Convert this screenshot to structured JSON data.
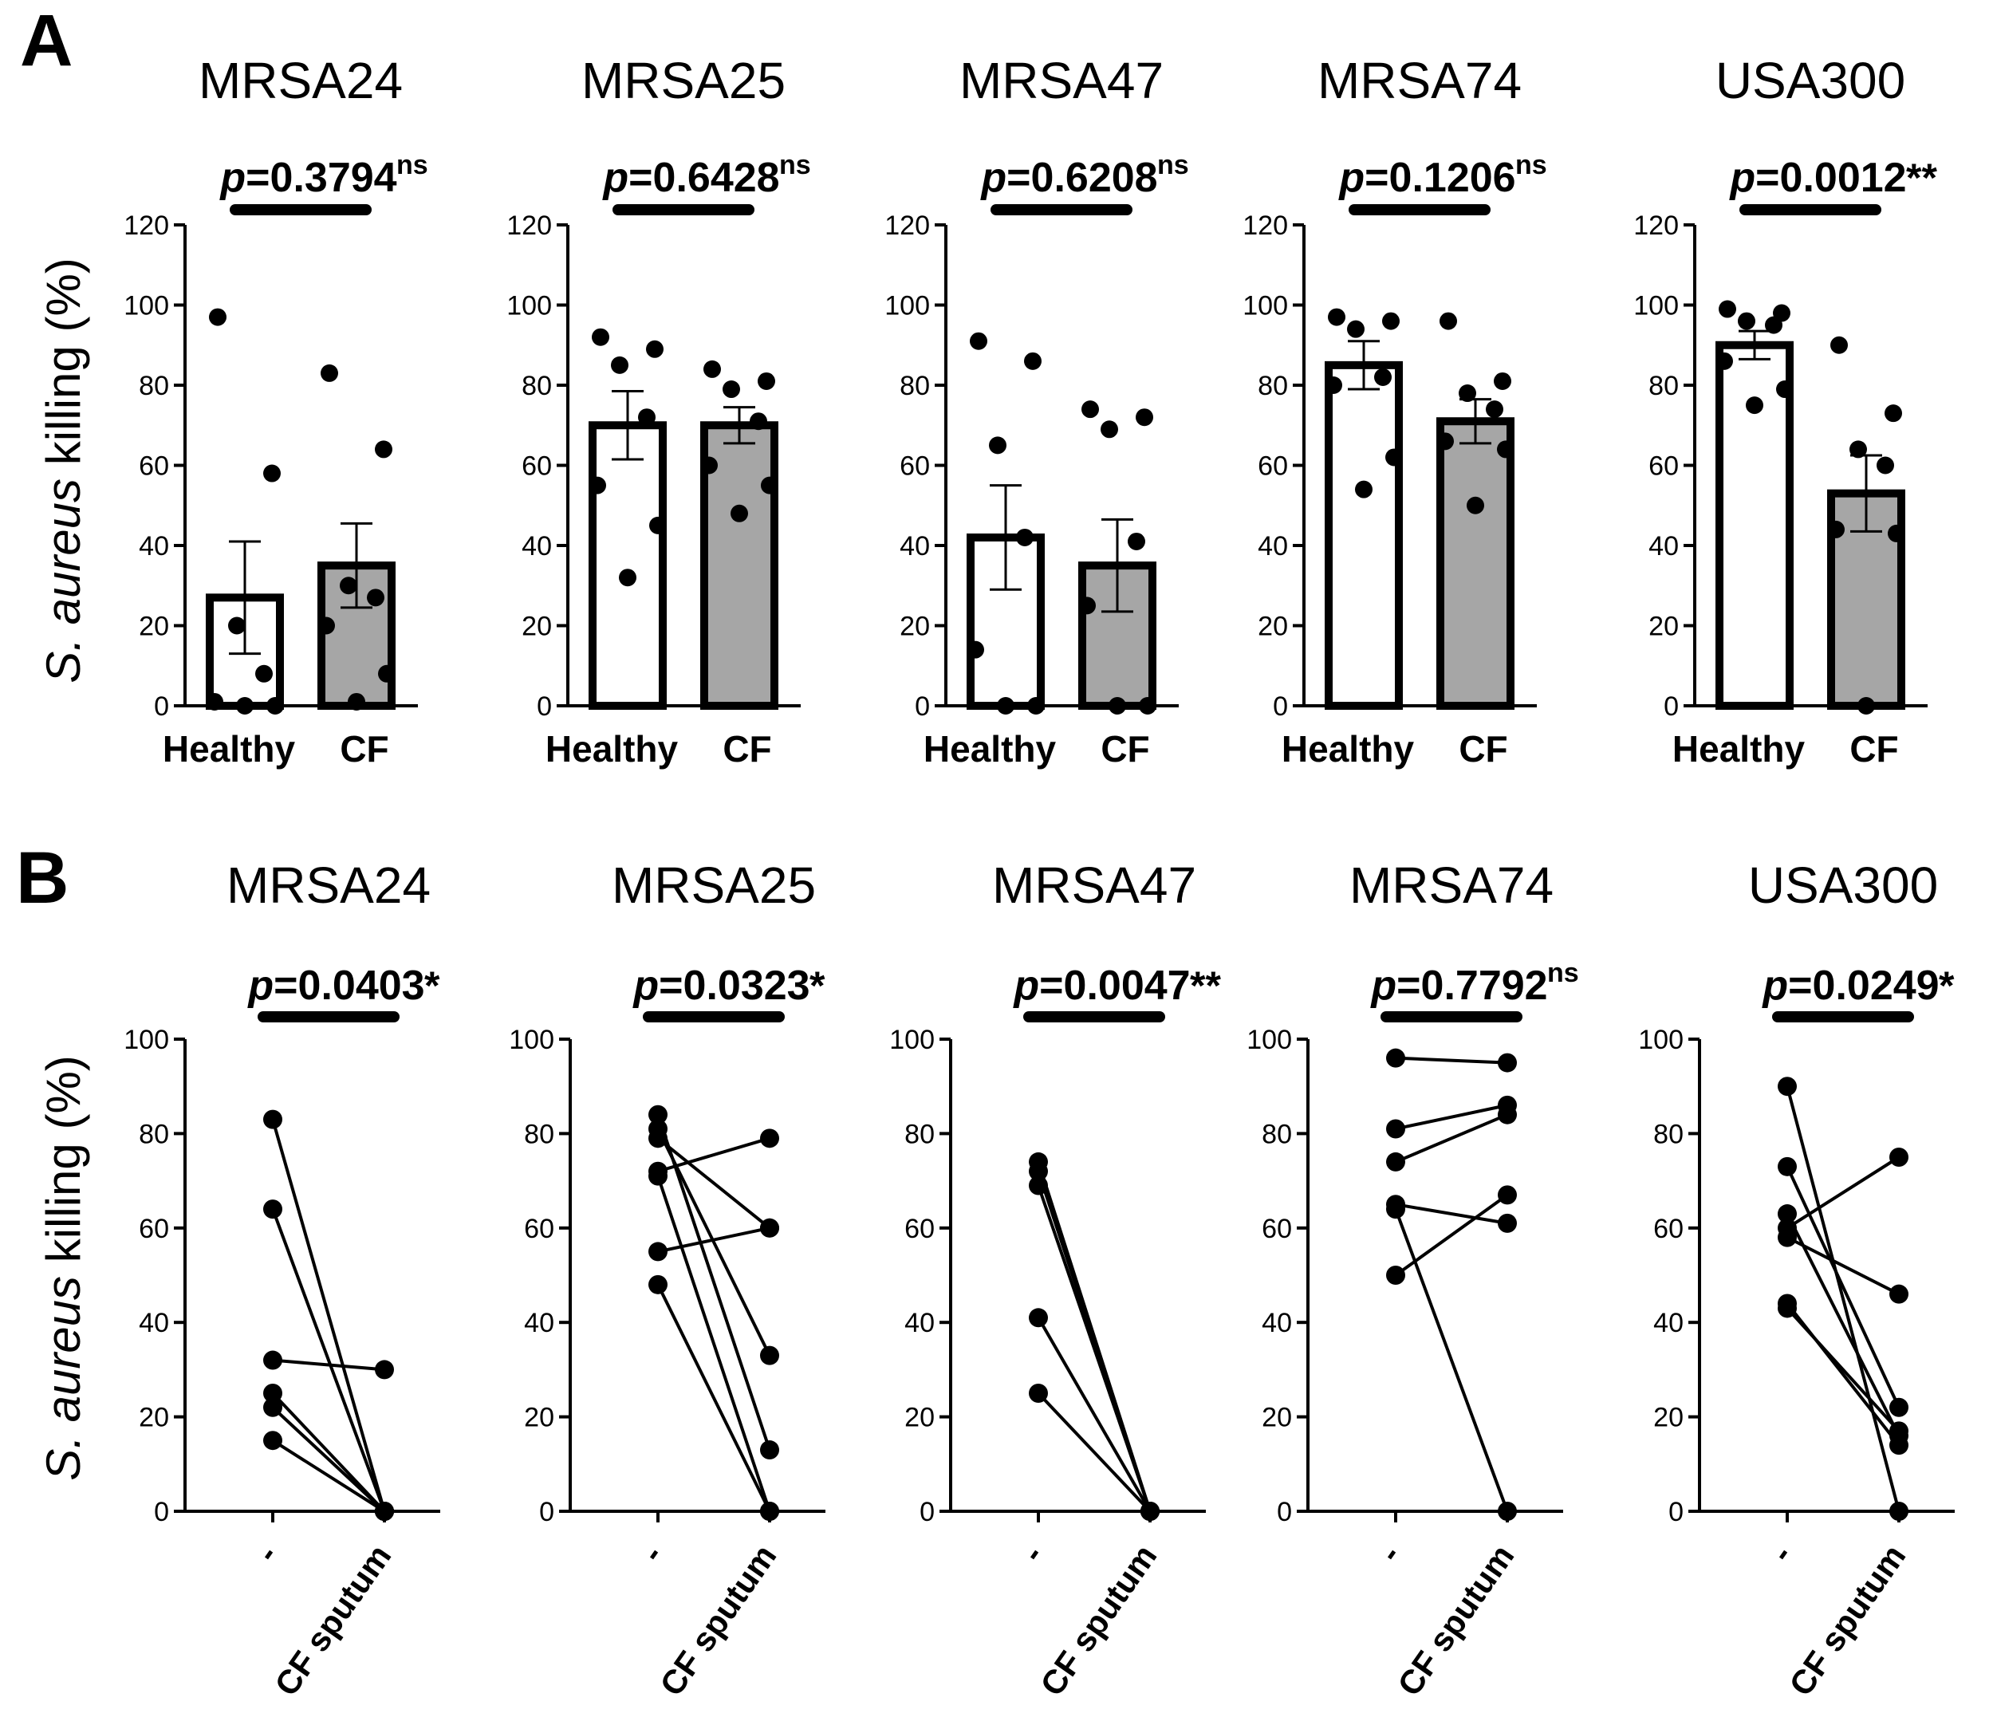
{
  "figure": {
    "panel_a_letter": "A",
    "panel_b_letter": "B",
    "panel_a_ylabel_italic": "S. aureus",
    "panel_a_ylabel_rest": " killing  (%)",
    "panel_b_ylabel_italic": "S. aureus",
    "panel_b_ylabel_rest": " killing (%)"
  },
  "chart_data": [
    {
      "type": "bar",
      "panel": "A",
      "title": "MRSA24",
      "categories": [
        "Healthy",
        "CF"
      ],
      "ylim": [
        0,
        120
      ],
      "yticks": [
        0,
        20,
        40,
        60,
        80,
        100,
        120
      ],
      "means": [
        27,
        35
      ],
      "sem": [
        14,
        10.5
      ],
      "points": [
        [
          97,
          58,
          20,
          8,
          1,
          0,
          0
        ],
        [
          83,
          64,
          30,
          27,
          20,
          8,
          1
        ]
      ],
      "fill": [
        "#ffffff",
        "#a6a6a6"
      ],
      "p_label": "p",
      "p_value": "=0.3794",
      "significance": "ns"
    },
    {
      "type": "bar",
      "panel": "A",
      "title": "MRSA25",
      "categories": [
        "Healthy",
        "CF"
      ],
      "ylim": [
        0,
        120
      ],
      "yticks": [
        0,
        20,
        40,
        60,
        80,
        100,
        120
      ],
      "means": [
        70,
        70
      ],
      "sem": [
        8.5,
        4.5
      ],
      "points": [
        [
          92,
          89,
          85,
          72,
          55,
          45,
          32
        ],
        [
          84,
          81,
          79,
          71,
          60,
          55,
          48
        ]
      ],
      "fill": [
        "#ffffff",
        "#a6a6a6"
      ],
      "p_label": "p",
      "p_value": "=0.6428",
      "significance": "ns"
    },
    {
      "type": "bar",
      "panel": "A",
      "title": "MRSA47",
      "categories": [
        "Healthy",
        "CF"
      ],
      "ylim": [
        0,
        120
      ],
      "yticks": [
        0,
        20,
        40,
        60,
        80,
        100,
        120
      ],
      "means": [
        42,
        35
      ],
      "sem": [
        13,
        11.5
      ],
      "points": [
        [
          91,
          86,
          65,
          42,
          14,
          0,
          0
        ],
        [
          74,
          72,
          69,
          41,
          25,
          0,
          0
        ]
      ],
      "fill": [
        "#ffffff",
        "#a6a6a6"
      ],
      "p_label": "p",
      "p_value": "=0.6208",
      "significance": "ns"
    },
    {
      "type": "bar",
      "panel": "A",
      "title": "MRSA74",
      "categories": [
        "Healthy",
        "CF"
      ],
      "ylim": [
        0,
        120
      ],
      "yticks": [
        0,
        20,
        40,
        60,
        80,
        100,
        120
      ],
      "means": [
        85,
        71
      ],
      "sem": [
        6,
        5.5
      ],
      "points": [
        [
          97,
          96,
          94,
          82,
          80,
          62,
          54
        ],
        [
          96,
          81,
          78,
          74,
          66,
          64,
          50
        ]
      ],
      "fill": [
        "#ffffff",
        "#a6a6a6"
      ],
      "p_label": "p",
      "p_value": "=0.1206",
      "significance": "ns"
    },
    {
      "type": "bar",
      "panel": "A",
      "title": "USA300",
      "categories": [
        "Healthy",
        "CF"
      ],
      "ylim": [
        0,
        120
      ],
      "yticks": [
        0,
        20,
        40,
        60,
        80,
        100,
        120
      ],
      "means": [
        90,
        53
      ],
      "sem": [
        3.5,
        9.5
      ],
      "points": [
        [
          99,
          98,
          96,
          95,
          86,
          79,
          75
        ],
        [
          90,
          73,
          64,
          60,
          44,
          43,
          0
        ]
      ],
      "fill": [
        "#ffffff",
        "#a6a6a6"
      ],
      "p_label": "p",
      "p_value": "=0.0012",
      "significance": "**"
    },
    {
      "type": "line",
      "panel": "B",
      "title": "MRSA24",
      "categories": [
        "-",
        "CF sputum"
      ],
      "ylim": [
        0,
        100
      ],
      "yticks": [
        0,
        20,
        40,
        60,
        80,
        100
      ],
      "pairs": [
        [
          83,
          0
        ],
        [
          64,
          0
        ],
        [
          32,
          30
        ],
        [
          25,
          0
        ],
        [
          22,
          0
        ],
        [
          15,
          0
        ]
      ],
      "p_label": "p",
      "p_value": "=0.0403",
      "significance": "*"
    },
    {
      "type": "line",
      "panel": "B",
      "title": "MRSA25",
      "categories": [
        "-",
        "CF sputum"
      ],
      "ylim": [
        0,
        100
      ],
      "yticks": [
        0,
        20,
        40,
        60,
        80,
        100
      ],
      "pairs": [
        [
          84,
          13
        ],
        [
          81,
          33
        ],
        [
          79,
          60
        ],
        [
          72,
          79
        ],
        [
          71,
          0
        ],
        [
          55,
          60
        ],
        [
          48,
          0
        ]
      ],
      "p_label": "p",
      "p_value": "=0.0323",
      "significance": "*"
    },
    {
      "type": "line",
      "panel": "B",
      "title": "MRSA47",
      "categories": [
        "-",
        "CF sputum"
      ],
      "ylim": [
        0,
        100
      ],
      "yticks": [
        0,
        20,
        40,
        60,
        80,
        100
      ],
      "pairs": [
        [
          74,
          0
        ],
        [
          72,
          0
        ],
        [
          69,
          0
        ],
        [
          41,
          0
        ],
        [
          25,
          0
        ]
      ],
      "p_label": "p",
      "p_value": "=0.0047",
      "significance": "**"
    },
    {
      "type": "line",
      "panel": "B",
      "title": "MRSA74",
      "categories": [
        "-",
        "CF sputum"
      ],
      "ylim": [
        0,
        100
      ],
      "yticks": [
        0,
        20,
        40,
        60,
        80,
        100
      ],
      "pairs": [
        [
          96,
          95
        ],
        [
          81,
          86
        ],
        [
          74,
          84
        ],
        [
          65,
          61
        ],
        [
          64,
          0
        ],
        [
          50,
          67
        ]
      ],
      "p_label": "p",
      "p_value": "=0.7792",
      "significance": "ns"
    },
    {
      "type": "line",
      "panel": "B",
      "title": "USA300",
      "categories": [
        "-",
        "CF sputum"
      ],
      "ylim": [
        0,
        100
      ],
      "yticks": [
        0,
        20,
        40,
        60,
        80,
        100
      ],
      "pairs": [
        [
          90,
          0
        ],
        [
          73,
          22
        ],
        [
          63,
          16
        ],
        [
          60,
          75
        ],
        [
          58,
          46
        ],
        [
          44,
          14
        ],
        [
          43,
          17
        ]
      ],
      "p_label": "p",
      "p_value": "=0.0249",
      "significance": "*"
    }
  ]
}
